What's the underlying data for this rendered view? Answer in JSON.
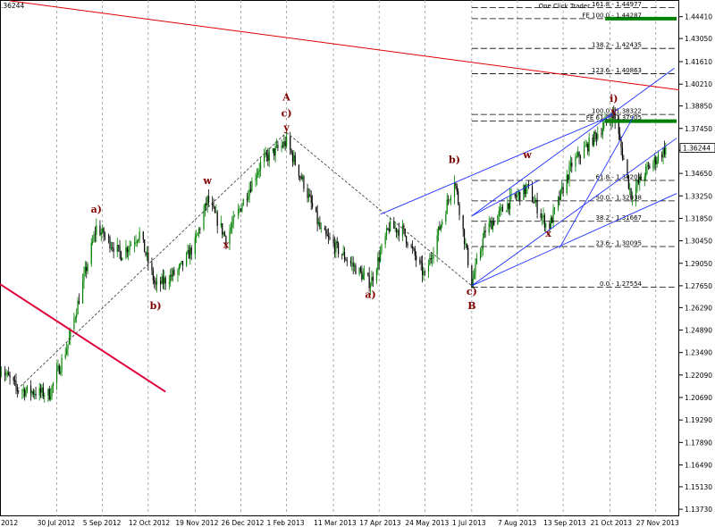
{
  "chart_data": {
    "type": "candlestick",
    "symbol_price_fragment": ".36244",
    "current_price": "1.36244",
    "y_ticks": [
      "1.44410",
      "1.43050",
      "1.41610",
      "1.40210",
      "1.38850",
      "1.37450",
      "1.36090",
      "1.34650",
      "1.33250",
      "1.31850",
      "1.30450",
      "1.29050",
      "1.27650",
      "1.26290",
      "1.24890",
      "1.23490",
      "1.22090",
      "1.20690",
      "1.19290",
      "1.17890",
      "1.16490",
      "1.15130",
      "1.13730"
    ],
    "x_ticks": [
      "2012",
      "30 Jul 2012",
      "5 Sep 2012",
      "12 Oct 2012",
      "19 Nov 2012",
      "26 Dec 2012",
      "1 Feb 2013",
      "11 Mar 2013",
      "17 Apr 2013",
      "24 May 2013",
      "1 Jul 2013",
      "7 Aug 2013",
      "13 Sep 2013",
      "21 Oct 2013",
      "27 Nov 2013"
    ],
    "fib_retracement_levels": [
      {
        "label": "0.0 - 1.27554",
        "value": 1.27554
      },
      {
        "label": "23.6 - 1.30095",
        "value": 1.30095
      },
      {
        "label": "38.2 - 1.31667",
        "value": 1.31667
      },
      {
        "label": "50.0 - 1.32938",
        "value": 1.32938
      },
      {
        "label": "61.8 - 1.34209",
        "value": 1.34209
      },
      {
        "label": "100.0 - 1.38322",
        "value": 1.38322
      },
      {
        "label": "123.6 - 1.40863",
        "value": 1.40863
      },
      {
        "label": "138.2 - 1.42435",
        "value": 1.42435
      },
      {
        "label": "161.8 - 1.44977",
        "value": 1.44977
      }
    ],
    "fib_expansion_levels": [
      {
        "label": "FE 61.8 - 1.37905",
        "value": 1.37905
      },
      {
        "label": "FE 100.0 - 1.44287",
        "value": 1.44287
      }
    ],
    "top_label": "One Click Trader",
    "wave_labels": [
      {
        "text": "a)",
        "date": "2012-08-31",
        "price": 1.322
      },
      {
        "text": "b)",
        "date": "2012-10-18",
        "price": 1.262
      },
      {
        "text": "w",
        "date": "2012-11-29",
        "price": 1.34
      },
      {
        "text": "x",
        "date": "2012-12-14",
        "price": 1.3
      },
      {
        "text": "A",
        "date": "2013-02-01",
        "price": 1.392
      },
      {
        "text": "c)",
        "date": "2013-02-01",
        "price": 1.382
      },
      {
        "text": "y",
        "date": "2013-02-01",
        "price": 1.373
      },
      {
        "text": "a)",
        "date": "2013-04-10",
        "price": 1.269
      },
      {
        "text": "b)",
        "date": "2013-06-17",
        "price": 1.353
      },
      {
        "text": "c)",
        "date": "2013-07-01",
        "price": 1.271
      },
      {
        "text": "B",
        "date": "2013-07-01",
        "price": 1.262
      },
      {
        "text": "w",
        "date": "2013-08-15",
        "price": 1.356
      },
      {
        "text": "x",
        "date": "2013-09-01",
        "price": 1.307
      },
      {
        "text": "i)",
        "date": "2013-10-24",
        "price": 1.391
      },
      {
        "text": "y",
        "date": "2013-10-24",
        "price": 1.383
      }
    ]
  }
}
